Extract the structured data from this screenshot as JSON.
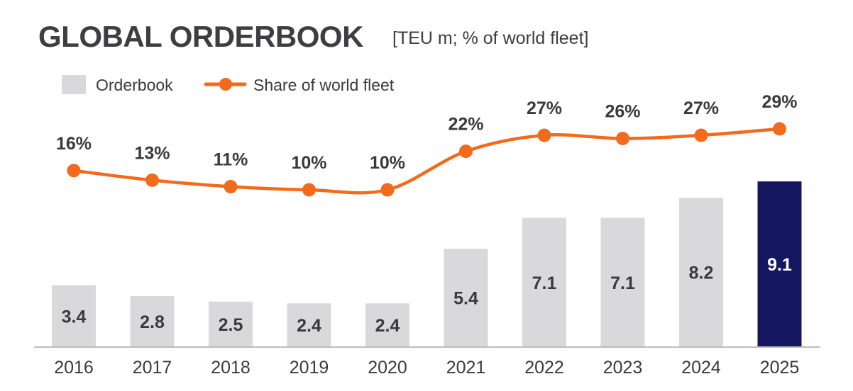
{
  "chart_data": {
    "type": "bar+line",
    "title": "GLOBAL ORDERBOOK",
    "subtitle": "[TEU m; % of world fleet]",
    "categories": [
      "2016",
      "2017",
      "2018",
      "2019",
      "2020",
      "2021",
      "2022",
      "2023",
      "2024",
      "2025"
    ],
    "series": [
      {
        "name": "Orderbook",
        "type": "bar",
        "values": [
          3.4,
          2.8,
          2.5,
          2.4,
          2.4,
          5.4,
          7.1,
          7.1,
          8.2,
          9.1
        ],
        "labels": [
          "3.4",
          "2.8",
          "2.5",
          "2.4",
          "2.4",
          "5.4",
          "7.1",
          "7.1",
          "8.2",
          "9.1"
        ]
      },
      {
        "name": "Share of world fleet",
        "type": "line",
        "values": [
          16,
          13,
          11,
          10,
          10,
          22,
          27,
          26,
          27,
          29
        ],
        "labels": [
          "16%",
          "13%",
          "11%",
          "10%",
          "10%",
          "22%",
          "27%",
          "26%",
          "27%",
          "29%"
        ]
      }
    ],
    "legend": "top-left",
    "grid": false,
    "colors": {
      "bar": "#d9d9db",
      "highlight_bar": "#141760",
      "line": "#f26a1b",
      "text": "#3a3a3e",
      "axis": "#bdbdbd"
    }
  }
}
